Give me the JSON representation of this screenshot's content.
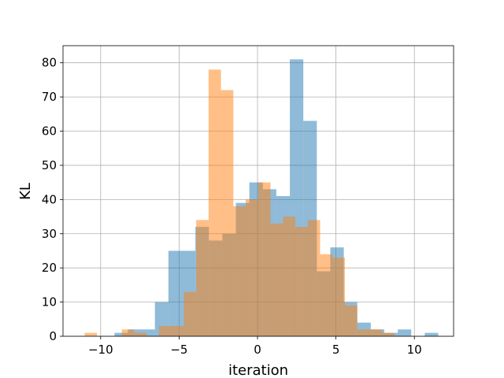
{
  "chart_data": {
    "type": "histogram",
    "xlabel": "iteration",
    "ylabel": "KL",
    "xlim": [
      -12.4,
      12.5
    ],
    "ylim": [
      0,
      85
    ],
    "xticks": [
      -10,
      -5,
      0,
      5,
      10
    ],
    "yticks": [
      0,
      10,
      20,
      30,
      40,
      50,
      60,
      70,
      80
    ],
    "grid": true,
    "legend": "none",
    "series": [
      {
        "color": "#1f77b4",
        "opacity": 0.5,
        "bins": [
          {
            "x0": -9.12,
            "x1": -8.26,
            "y": 1
          },
          {
            "x0": -8.26,
            "x1": -7.4,
            "y": 2
          },
          {
            "x0": -7.4,
            "x1": -6.54,
            "y": 2
          },
          {
            "x0": -6.54,
            "x1": -5.68,
            "y": 10
          },
          {
            "x0": -5.68,
            "x1": -4.82,
            "y": 25
          },
          {
            "x0": -4.82,
            "x1": -3.96,
            "y": 25
          },
          {
            "x0": -3.96,
            "x1": -3.1,
            "y": 32
          },
          {
            "x0": -3.1,
            "x1": -2.24,
            "y": 28
          },
          {
            "x0": -2.24,
            "x1": -1.38,
            "y": 30
          },
          {
            "x0": -1.38,
            "x1": -0.52,
            "y": 39
          },
          {
            "x0": -0.52,
            "x1": 0.34,
            "y": 45
          },
          {
            "x0": 0.34,
            "x1": 1.2,
            "y": 43
          },
          {
            "x0": 1.2,
            "x1": 2.06,
            "y": 41
          },
          {
            "x0": 2.06,
            "x1": 2.92,
            "y": 81
          },
          {
            "x0": 2.92,
            "x1": 3.78,
            "y": 63
          },
          {
            "x0": 3.78,
            "x1": 4.64,
            "y": 19
          },
          {
            "x0": 4.64,
            "x1": 5.5,
            "y": 26
          },
          {
            "x0": 5.5,
            "x1": 6.36,
            "y": 10
          },
          {
            "x0": 6.36,
            "x1": 7.22,
            "y": 4
          },
          {
            "x0": 7.22,
            "x1": 8.08,
            "y": 2
          },
          {
            "x0": 8.08,
            "x1": 8.94,
            "y": 1
          },
          {
            "x0": 8.94,
            "x1": 9.8,
            "y": 2
          },
          {
            "x0": 9.8,
            "x1": 10.66,
            "y": 0
          },
          {
            "x0": 10.66,
            "x1": 11.52,
            "y": 1
          }
        ]
      },
      {
        "color": "#ff7f0e",
        "opacity": 0.5,
        "bins": [
          {
            "x0": -11.02,
            "x1": -10.23,
            "y": 1
          },
          {
            "x0": -10.23,
            "x1": -9.44,
            "y": 0
          },
          {
            "x0": -9.44,
            "x1": -8.65,
            "y": 0
          },
          {
            "x0": -8.65,
            "x1": -7.86,
            "y": 2
          },
          {
            "x0": -7.86,
            "x1": -7.07,
            "y": 1
          },
          {
            "x0": -7.07,
            "x1": -6.28,
            "y": 0
          },
          {
            "x0": -6.28,
            "x1": -5.49,
            "y": 3
          },
          {
            "x0": -5.49,
            "x1": -4.7,
            "y": 3
          },
          {
            "x0": -4.7,
            "x1": -3.91,
            "y": 13
          },
          {
            "x0": -3.91,
            "x1": -3.12,
            "y": 34
          },
          {
            "x0": -3.12,
            "x1": -2.33,
            "y": 78
          },
          {
            "x0": -2.33,
            "x1": -1.54,
            "y": 72
          },
          {
            "x0": -1.54,
            "x1": -0.75,
            "y": 38
          },
          {
            "x0": -0.75,
            "x1": 0.04,
            "y": 40
          },
          {
            "x0": 0.04,
            "x1": 0.83,
            "y": 45
          },
          {
            "x0": 0.83,
            "x1": 1.62,
            "y": 33
          },
          {
            "x0": 1.62,
            "x1": 2.41,
            "y": 35
          },
          {
            "x0": 2.41,
            "x1": 3.2,
            "y": 32
          },
          {
            "x0": 3.2,
            "x1": 3.99,
            "y": 34
          },
          {
            "x0": 3.99,
            "x1": 4.78,
            "y": 24
          },
          {
            "x0": 4.78,
            "x1": 5.57,
            "y": 23
          },
          {
            "x0": 5.57,
            "x1": 6.36,
            "y": 9
          },
          {
            "x0": 6.36,
            "x1": 7.15,
            "y": 2
          },
          {
            "x0": 7.15,
            "x1": 7.94,
            "y": 2
          },
          {
            "x0": 7.94,
            "x1": 8.73,
            "y": 1
          }
        ]
      }
    ]
  }
}
